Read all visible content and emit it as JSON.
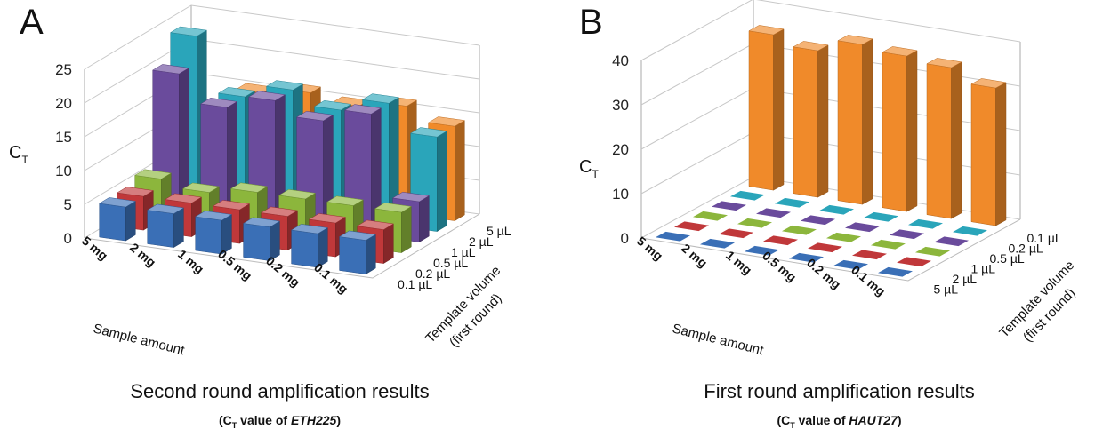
{
  "chart_data": [
    {
      "type": "bar",
      "panel_letter": "A",
      "title": "Second round amplification results",
      "subtitle_prefix": "(C",
      "subtitle_sub": "T",
      "subtitle_mid": " value of ",
      "subtitle_gene": "ETH225",
      "subtitle_suffix": ")",
      "ylabel_main": "C",
      "ylabel_sub": "T",
      "xlabel": "Sample amount",
      "zlabel_lines": [
        "Template volume",
        "(first round)"
      ],
      "yticks": [
        "0",
        "5",
        "10",
        "15",
        "20",
        "25"
      ],
      "ylim": [
        0,
        25
      ],
      "categories": [
        "5 mg",
        "2 mg",
        "1 mg",
        "0.5 mg",
        "0.2 mg",
        "0.1 mg"
      ],
      "series": [
        {
          "name": "0.1 µL",
          "values": [
            5,
            5,
            5,
            5,
            5,
            5
          ]
        },
        {
          "name": "0.2 µL",
          "values": [
            5,
            5,
            5,
            5,
            5,
            5
          ]
        },
        {
          "name": "0.5 µL",
          "values": [
            6,
            5,
            6,
            6,
            6,
            6
          ]
        },
        {
          "name": "1 µL",
          "values": [
            20,
            16,
            18,
            16,
            18,
            6
          ]
        },
        {
          "name": "2 µL",
          "values": [
            24,
            16,
            18,
            16,
            18,
            14
          ]
        },
        {
          "name": "5 µL",
          "values": [
            0,
            15,
            16,
            15,
            16,
            14
          ]
        }
      ],
      "colors": [
        "#3a6fb6",
        "#c0383a",
        "#8cb63c",
        "#6a4b9c",
        "#2aa5ba",
        "#f08a2a"
      ]
    },
    {
      "type": "bar",
      "panel_letter": "B",
      "title": "First round amplification results",
      "subtitle_prefix": "(C",
      "subtitle_sub": "T",
      "subtitle_mid": " value of ",
      "subtitle_gene": "HAUT27",
      "subtitle_suffix": ")",
      "ylabel_main": "C",
      "ylabel_sub": "T",
      "xlabel": "Sample amount",
      "zlabel_lines": [
        "Template volume",
        "(first round)"
      ],
      "yticks": [
        "0",
        "10",
        "20",
        "30",
        "40"
      ],
      "ylim": [
        0,
        40
      ],
      "categories": [
        "5 mg",
        "2 mg",
        "1 mg",
        "0.5 mg",
        "0.2 mg",
        "0.1 mg"
      ],
      "series": [
        {
          "name": "5 µL",
          "values": [
            0,
            0,
            0,
            0,
            0,
            0
          ]
        },
        {
          "name": "2 µL",
          "values": [
            0,
            0,
            0,
            0,
            0,
            0
          ]
        },
        {
          "name": "1 µL",
          "values": [
            0,
            0,
            0,
            0,
            0,
            0
          ]
        },
        {
          "name": "0.5 µL",
          "values": [
            0,
            0,
            0,
            0,
            0,
            0
          ]
        },
        {
          "name": "0.2 µL",
          "values": [
            0,
            0,
            0,
            0,
            0,
            0
          ]
        },
        {
          "name": "0.1 µL",
          "values": [
            35,
            33,
            36,
            35,
            34,
            31
          ]
        }
      ],
      "colors": [
        "#3a6fb6",
        "#c0383a",
        "#8cb63c",
        "#6a4b9c",
        "#2aa5ba",
        "#f08a2a"
      ]
    }
  ]
}
